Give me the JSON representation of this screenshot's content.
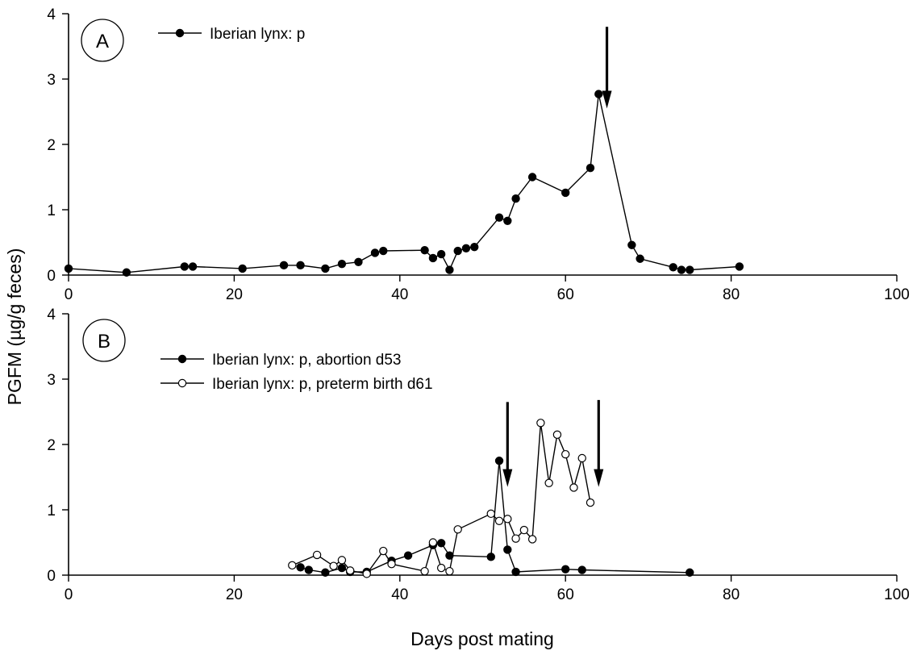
{
  "chart_data": [
    {
      "panel": "A",
      "type": "line",
      "ylabel": "PGFM (µg/g feces)",
      "xlabel": "Days post mating",
      "xlim": [
        0,
        100
      ],
      "ylim": [
        0,
        4
      ],
      "xticks": [
        0,
        20,
        40,
        60,
        80,
        100
      ],
      "yticks": [
        0,
        1,
        2,
        3,
        4
      ],
      "grid": false,
      "legend_position": "top-left",
      "series": [
        {
          "name": "Iberian lynx: p",
          "marker": "filled",
          "x": [
            0,
            7,
            14,
            15,
            21,
            26,
            28,
            31,
            33,
            35,
            37,
            38,
            43,
            44,
            45,
            46,
            47,
            48,
            49,
            52,
            53,
            54,
            56,
            60,
            63,
            64,
            68,
            69,
            73,
            74,
            75,
            81
          ],
          "y": [
            0.1,
            0.04,
            0.13,
            0.13,
            0.1,
            0.15,
            0.15,
            0.1,
            0.17,
            0.2,
            0.34,
            0.37,
            0.38,
            0.26,
            0.32,
            0.08,
            0.37,
            0.41,
            0.43,
            0.88,
            0.83,
            1.17,
            1.5,
            1.26,
            1.64,
            2.77,
            0.46,
            0.25,
            0.12,
            0.08,
            0.08,
            0.13
          ]
        }
      ],
      "annotations": [
        {
          "type": "arrow",
          "x": 65,
          "y_from": 3.8,
          "y_to": 2.55
        }
      ]
    },
    {
      "panel": "B",
      "type": "line",
      "ylabel": "PGFM (µg/g feces)",
      "xlabel": "Days post mating",
      "xlim": [
        0,
        100
      ],
      "ylim": [
        0,
        4
      ],
      "xticks": [
        0,
        20,
        40,
        60,
        80,
        100
      ],
      "yticks": [
        0,
        1,
        2,
        3,
        4
      ],
      "grid": false,
      "legend_position": "top-left",
      "series": [
        {
          "name": "Iberian lynx: p, abortion d53",
          "marker": "filled",
          "x": [
            28,
            29,
            31,
            33,
            34,
            36,
            39,
            41,
            44,
            45,
            46,
            51,
            52,
            53,
            54,
            60,
            62,
            75
          ],
          "y": [
            0.12,
            0.08,
            0.04,
            0.11,
            0.05,
            0.05,
            0.22,
            0.3,
            0.46,
            0.49,
            0.3,
            0.28,
            1.75,
            0.39,
            0.05,
            0.09,
            0.08,
            0.04
          ]
        },
        {
          "name": "Iberian lynx: p, preterm birth d61",
          "marker": "open",
          "x": [
            27,
            30,
            32,
            33,
            34,
            36,
            38,
            39,
            43,
            44,
            45,
            46,
            47,
            51,
            52,
            53,
            54,
            55,
            56,
            57,
            58,
            59,
            60,
            61,
            62,
            63
          ],
          "y": [
            0.15,
            0.31,
            0.14,
            0.23,
            0.07,
            0.02,
            0.37,
            0.17,
            0.06,
            0.5,
            0.11,
            0.06,
            0.7,
            0.94,
            0.83,
            0.86,
            0.56,
            0.69,
            0.55,
            2.33,
            1.41,
            2.15,
            1.85,
            1.34,
            1.79,
            1.11
          ]
        }
      ],
      "annotations": [
        {
          "type": "arrow",
          "x": 53,
          "y_from": 2.65,
          "y_to": 1.35
        },
        {
          "type": "arrow",
          "x": 64,
          "y_from": 2.68,
          "y_to": 1.35
        }
      ]
    }
  ]
}
